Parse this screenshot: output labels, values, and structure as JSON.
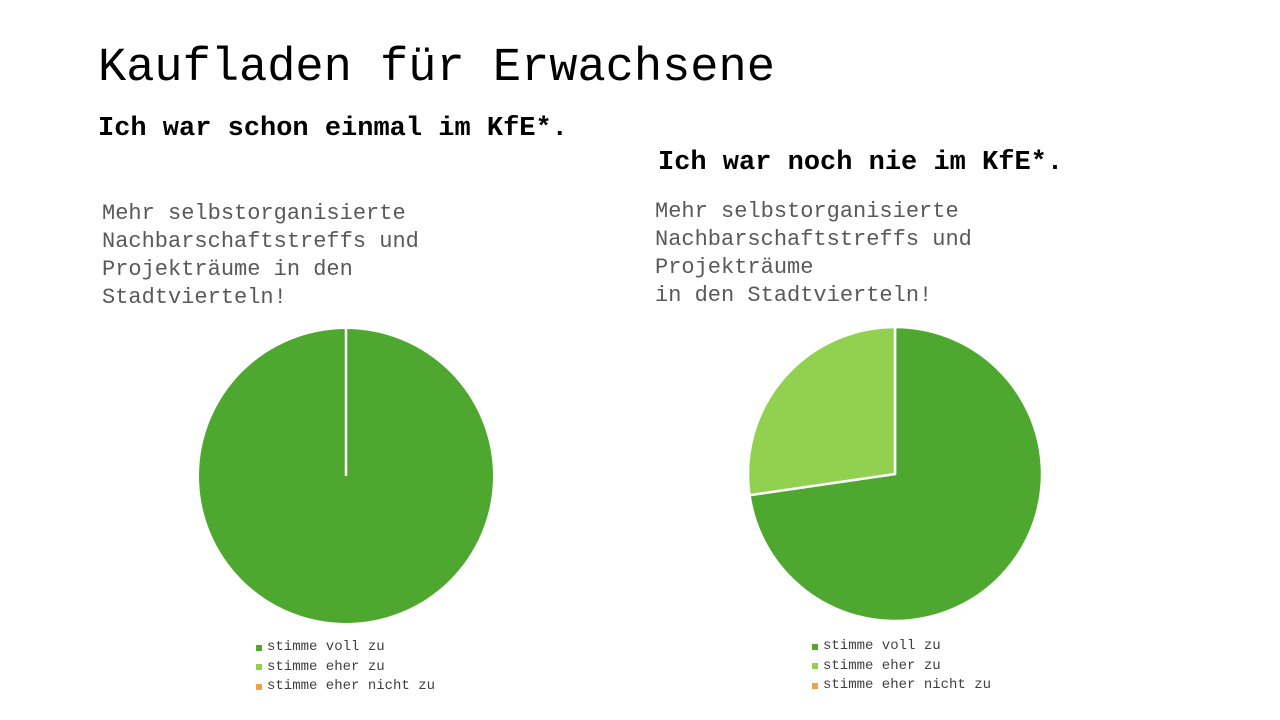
{
  "slide": {
    "title": "Kaufladen für Erwachsene"
  },
  "panels": [
    {
      "heading": "Ich war schon einmal im KfE*.",
      "chart_title": "Mehr selbstorganisierte\nNachbarschaftstreffs und\nProjekträume in den\nStadtvierteln!"
    },
    {
      "heading": "Ich war noch nie im KfE*.",
      "chart_title": "Mehr selbstorganisierte\nNachbarschaftstreffs und\nProjekträume\nin den Stadtvierteln!"
    }
  ],
  "colors": {
    "stimme_voll_zu": "#4ea72e",
    "stimme_eher_zu": "#92d050",
    "stimme_eher_nicht_zu": "#f4a145"
  },
  "chart_data": [
    {
      "type": "pie",
      "title": "Mehr selbstorganisierte Nachbarschaftstreffs und Projekträume in den Stadtvierteln!",
      "categories": [
        "stimme voll zu",
        "stimme eher zu",
        "stimme eher nicht zu"
      ],
      "values": [
        100,
        0,
        0
      ],
      "colors": [
        "#4ea72e",
        "#92d050",
        "#f4a145"
      ],
      "legend": "bottom"
    },
    {
      "type": "pie",
      "title": "Mehr selbstorganisierte Nachbarschaftstreffs und Projekträume in den Stadtvierteln!",
      "categories": [
        "stimme voll zu",
        "stimme eher zu",
        "stimme eher nicht zu"
      ],
      "values": [
        72.7,
        27.3,
        0
      ],
      "colors": [
        "#4ea72e",
        "#92d050",
        "#f4a145"
      ],
      "legend": "bottom"
    }
  ]
}
